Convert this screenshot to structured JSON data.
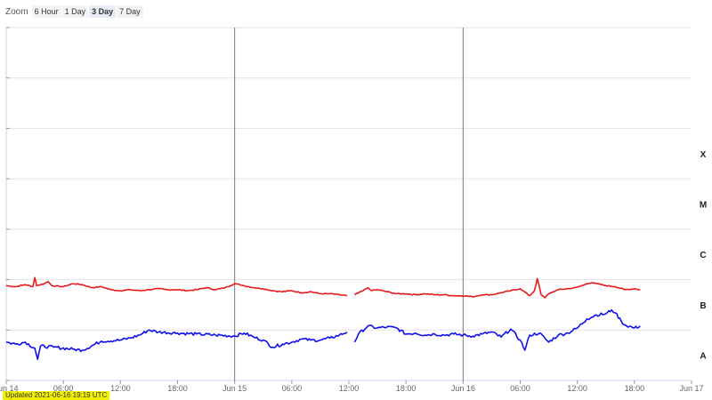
{
  "toolbar": {
    "zoom_label": "Zoom",
    "buttons": [
      "6 Hour",
      "1 Day",
      "3 Day",
      "7 Day"
    ],
    "active": "3 Day"
  },
  "updated_text": "Updated 2021-06-16 19:19 UTC",
  "colors": {
    "long": "#e8191c",
    "short": "#1010ee",
    "grid": "#e3e3e3",
    "axis": "#ccd6eb"
  },
  "chart_data": {
    "type": "line",
    "x_unit": "hours since Jun 14 00:00 UTC",
    "xlim": [
      0,
      72
    ],
    "ylim": [
      -9,
      -2
    ],
    "y_scale": "log10 flux",
    "flare_class_labels": [
      "A",
      "B",
      "C",
      "M",
      "X"
    ],
    "flare_class_values": [
      -8,
      -7,
      -6,
      -5,
      -4
    ],
    "x_ticks": [
      "Jun 14",
      "06:00",
      "12:00",
      "18:00",
      "Jun 15",
      "06:00",
      "12:00",
      "18:00",
      "Jun 16",
      "06:00",
      "12:00",
      "18:00",
      "Jun 17"
    ],
    "day_lines": [
      24,
      48
    ],
    "series": [
      {
        "color": "#e8191c",
        "segments": [
          [
            [
              0,
              -7.12
            ],
            [
              1,
              -7.14
            ],
            [
              2,
              -7.1
            ],
            [
              2.8,
              -7.14
            ],
            [
              3,
              -6.96
            ],
            [
              3.2,
              -7.12
            ],
            [
              4,
              -7.08
            ],
            [
              4.4,
              -7.04
            ],
            [
              4.8,
              -7.12
            ],
            [
              6,
              -7.14
            ],
            [
              7,
              -7.08
            ],
            [
              8,
              -7.1
            ],
            [
              9,
              -7.16
            ],
            [
              10,
              -7.14
            ],
            [
              11,
              -7.2
            ],
            [
              12,
              -7.22
            ],
            [
              13,
              -7.2
            ],
            [
              14,
              -7.22
            ],
            [
              15,
              -7.2
            ],
            [
              16,
              -7.18
            ],
            [
              17,
              -7.2
            ],
            [
              18,
              -7.2
            ],
            [
              19,
              -7.22
            ],
            [
              20,
              -7.2
            ],
            [
              21,
              -7.16
            ],
            [
              22,
              -7.2
            ],
            [
              23,
              -7.16
            ],
            [
              24,
              -7.08
            ],
            [
              25,
              -7.12
            ],
            [
              26,
              -7.16
            ],
            [
              27,
              -7.18
            ],
            [
              28,
              -7.22
            ],
            [
              29,
              -7.24
            ],
            [
              30,
              -7.22
            ],
            [
              31,
              -7.26
            ],
            [
              32,
              -7.24
            ],
            [
              33,
              -7.28
            ],
            [
              34,
              -7.28
            ],
            [
              35,
              -7.3
            ],
            [
              35.8,
              -7.32
            ]
          ],
          [
            [
              36.6,
              -7.3
            ],
            [
              37.5,
              -7.22
            ],
            [
              38,
              -7.16
            ],
            [
              38.4,
              -7.22
            ],
            [
              39,
              -7.2
            ],
            [
              40,
              -7.24
            ],
            [
              41,
              -7.28
            ],
            [
              42,
              -7.28
            ],
            [
              43,
              -7.3
            ],
            [
              44,
              -7.28
            ],
            [
              45,
              -7.3
            ],
            [
              46,
              -7.3
            ],
            [
              47,
              -7.32
            ],
            [
              48,
              -7.32
            ],
            [
              49,
              -7.34
            ],
            [
              50,
              -7.3
            ],
            [
              51,
              -7.3
            ],
            [
              52,
              -7.26
            ],
            [
              53,
              -7.22
            ],
            [
              54,
              -7.18
            ],
            [
              55,
              -7.32
            ],
            [
              55.5,
              -7.22
            ],
            [
              55.8,
              -6.98
            ],
            [
              56.2,
              -7.3
            ],
            [
              56.6,
              -7.36
            ],
            [
              57,
              -7.28
            ],
            [
              58,
              -7.2
            ],
            [
              59,
              -7.18
            ],
            [
              59.8,
              -7.16
            ],
            [
              60.5,
              -7.12
            ],
            [
              61,
              -7.08
            ],
            [
              61.5,
              -7.06
            ],
            [
              62,
              -7.08
            ],
            [
              63,
              -7.12
            ],
            [
              64,
              -7.14
            ],
            [
              65,
              -7.2
            ],
            [
              66,
              -7.18
            ],
            [
              66.6,
              -7.2
            ]
          ]
        ]
      },
      {
        "color": "#1010ee",
        "segments": [
          [
            [
              0,
              -8.24
            ],
            [
              1,
              -8.28
            ],
            [
              2,
              -8.24
            ],
            [
              3,
              -8.36
            ],
            [
              3.3,
              -8.58
            ],
            [
              3.6,
              -8.32
            ],
            [
              5,
              -8.34
            ],
            [
              7,
              -8.38
            ],
            [
              8,
              -8.4
            ],
            [
              10,
              -8.22
            ],
            [
              12,
              -8.2
            ],
            [
              13,
              -8.16
            ],
            [
              14,
              -8.1
            ],
            [
              15,
              -8.0
            ],
            [
              16,
              -8.04
            ],
            [
              18,
              -8.06
            ],
            [
              20,
              -8.08
            ],
            [
              22,
              -8.1
            ],
            [
              24,
              -8.12
            ],
            [
              25,
              -8.06
            ],
            [
              26,
              -8.14
            ],
            [
              27,
              -8.2
            ],
            [
              28,
              -8.34
            ],
            [
              29,
              -8.28
            ],
            [
              30,
              -8.24
            ],
            [
              31,
              -8.18
            ],
            [
              32,
              -8.2
            ],
            [
              33,
              -8.2
            ],
            [
              34,
              -8.16
            ],
            [
              35,
              -8.1
            ],
            [
              35.8,
              -8.04
            ]
          ],
          [
            [
              36.6,
              -8.24
            ],
            [
              37,
              -8.08
            ],
            [
              38,
              -7.92
            ],
            [
              39,
              -7.96
            ],
            [
              40,
              -7.94
            ],
            [
              41,
              -7.96
            ],
            [
              42,
              -8.08
            ],
            [
              43,
              -8.06
            ],
            [
              44,
              -8.1
            ],
            [
              45,
              -8.08
            ],
            [
              46,
              -8.1
            ],
            [
              47,
              -8.08
            ],
            [
              48,
              -8.1
            ],
            [
              49,
              -8.12
            ],
            [
              50,
              -8.08
            ],
            [
              51,
              -8.04
            ],
            [
              52,
              -8.14
            ],
            [
              53,
              -7.98
            ],
            [
              54,
              -8.2
            ],
            [
              54.5,
              -8.4
            ],
            [
              55,
              -8.1
            ],
            [
              56,
              -8.06
            ],
            [
              57,
              -8.24
            ],
            [
              58,
              -8.1
            ],
            [
              59,
              -8.06
            ],
            [
              60,
              -7.96
            ],
            [
              61,
              -7.78
            ],
            [
              62,
              -7.7
            ],
            [
              63,
              -7.68
            ],
            [
              63.6,
              -7.6
            ],
            [
              64,
              -7.66
            ],
            [
              64.6,
              -7.82
            ],
            [
              65,
              -7.9
            ],
            [
              66,
              -7.96
            ],
            [
              66.6,
              -7.92
            ]
          ]
        ]
      }
    ]
  }
}
